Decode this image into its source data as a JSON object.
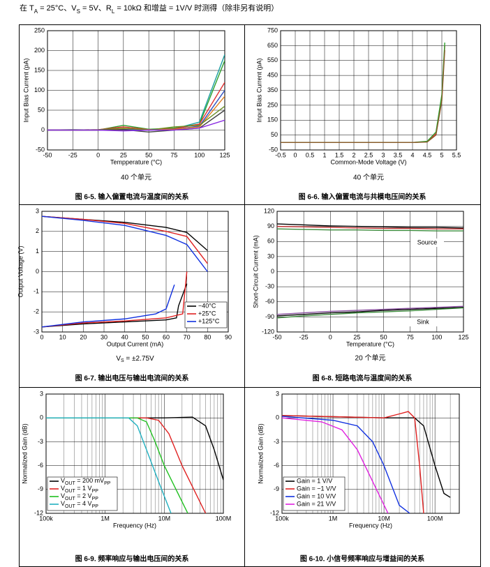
{
  "header": [
    "在 T",
    "A",
    " = 25°C、V",
    "S",
    " = 5V、R",
    "L",
    " = 10kΩ 和增益 = 1V/V 时测得（除非另有说明）"
  ],
  "chart_data": [
    {
      "type": "line",
      "caption": "图 6-5. 输入偏置电流与温度间的关系",
      "subtitle": "40 个单元",
      "xlabel": "Tempperature (°C)",
      "ylabel": "Input Bias Current (pA)",
      "x": [
        -50,
        -25,
        0,
        25,
        50,
        75,
        100,
        125
      ],
      "xlim": [
        -50,
        125
      ],
      "ylim": [
        -50,
        250
      ],
      "xticks": [
        -50,
        -25,
        0,
        25,
        50,
        75,
        100,
        125
      ],
      "yticks": [
        -50,
        0,
        50,
        100,
        150,
        200,
        250
      ],
      "grid": true,
      "series": [
        {
          "color": "#1a9ea0",
          "values": [
            0,
            0,
            0,
            3,
            2,
            3,
            20,
            190
          ]
        },
        {
          "color": "#2ca02c",
          "values": [
            0,
            1,
            0,
            12,
            2,
            5,
            15,
            175
          ]
        },
        {
          "color": "#e03030",
          "values": [
            0,
            0,
            1,
            8,
            1,
            3,
            15,
            120
          ]
        },
        {
          "color": "#3050c0",
          "values": [
            0,
            0,
            0,
            2,
            0,
            2,
            10,
            100
          ]
        },
        {
          "color": "#e08020",
          "values": [
            0,
            0,
            0,
            4,
            1,
            2,
            8,
            85
          ]
        },
        {
          "color": "#6b8e23",
          "values": [
            0,
            0,
            1,
            5,
            0,
            8,
            12,
            60
          ]
        },
        {
          "color": "#404040",
          "values": [
            0,
            0,
            0,
            1,
            -5,
            0,
            5,
            50
          ]
        },
        {
          "color": "#8a2be2",
          "values": [
            0,
            0,
            0,
            -2,
            0,
            0,
            5,
            25
          ]
        }
      ]
    },
    {
      "type": "line",
      "caption": "图 6-6. 输入偏置电流与共模电压间的关系",
      "subtitle": "40 个单元",
      "xlabel": "Common-Mode Voltage (V)",
      "ylabel": "Input Bias Current (pA)",
      "x": [
        -0.5,
        0,
        1,
        2,
        3,
        4,
        4.5,
        4.8,
        5,
        5.1
      ],
      "xlim": [
        -0.5,
        5.5
      ],
      "ylim": [
        -50,
        750
      ],
      "xticks": [
        -0.5,
        0,
        0.5,
        1,
        1.5,
        2,
        2.5,
        3,
        3.5,
        4,
        4.5,
        5,
        5.5
      ],
      "yticks": [
        -50,
        50,
        150,
        250,
        350,
        450,
        550,
        650,
        750
      ],
      "grid": true,
      "series": [
        {
          "color": "#e03030",
          "values": [
            0,
            0,
            0,
            0,
            0,
            0,
            5,
            60,
            300,
            650
          ]
        },
        {
          "color": "#2ca02c",
          "values": [
            0,
            0,
            0,
            0,
            0,
            0,
            8,
            70,
            320,
            670
          ]
        },
        {
          "color": "#8b5a2b",
          "values": [
            0,
            0,
            0,
            0,
            0,
            0,
            3,
            50,
            280,
            620
          ]
        }
      ]
    },
    {
      "type": "line",
      "caption": "图 6-7. 输出电压与输出电流间的关系",
      "subtitle": [
        "V",
        "S",
        " = ±2.75V"
      ],
      "xlabel": "Output Current (mA)",
      "ylabel": "Output Voltage (V)",
      "xlim": [
        0,
        90
      ],
      "ylim": [
        -3,
        3
      ],
      "xticks": [
        0,
        10,
        20,
        30,
        40,
        50,
        60,
        70,
        80,
        90
      ],
      "yticks": [
        -3,
        -2,
        -1,
        0,
        1,
        2,
        3
      ],
      "grid": true,
      "legend": "lower right",
      "series": [
        {
          "name": "−40°C",
          "color": "#000000",
          "x": [
            0,
            20,
            40,
            60,
            70,
            80
          ],
          "values": [
            2.75,
            2.6,
            2.45,
            2.2,
            1.95,
            1.05
          ]
        },
        {
          "name": "+25°C",
          "color": "#e02020",
          "x": [
            0,
            20,
            40,
            60,
            70,
            80
          ],
          "values": [
            2.75,
            2.6,
            2.4,
            2.0,
            1.75,
            0.4
          ]
        },
        {
          "name": "+125°C",
          "color": "#1030e0",
          "x": [
            0,
            20,
            40,
            60,
            70,
            80
          ],
          "values": [
            2.75,
            2.55,
            2.3,
            1.8,
            1.35,
            0.0
          ]
        },
        {
          "color": "#000000",
          "x": [
            0,
            20,
            40,
            60,
            65,
            66,
            70
          ],
          "values": [
            -2.75,
            -2.6,
            -2.5,
            -2.4,
            -2.3,
            -1.7,
            -0.6
          ]
        },
        {
          "color": "#e02020",
          "x": [
            0,
            20,
            40,
            60,
            68,
            70
          ],
          "values": [
            -2.75,
            -2.55,
            -2.45,
            -2.3,
            -2.1,
            0
          ]
        },
        {
          "color": "#1030e0",
          "x": [
            0,
            20,
            40,
            55,
            60,
            64
          ],
          "values": [
            -2.75,
            -2.5,
            -2.35,
            -2.1,
            -1.85,
            -0.65
          ]
        }
      ]
    },
    {
      "type": "line",
      "caption": "图 6-8. 短路电流与温度间的关系",
      "subtitle": "20 个单元",
      "xlabel": "Temperature (°C)",
      "ylabel": "Short-Circuit Current (mA)",
      "annotations": [
        "Source",
        "Sink"
      ],
      "x": [
        -50,
        -25,
        0,
        25,
        50,
        75,
        100,
        125
      ],
      "xlim": [
        -50,
        125
      ],
      "ylim": [
        -120,
        120
      ],
      "xticks": [
        -50,
        -25,
        0,
        25,
        50,
        75,
        100,
        125
      ],
      "yticks": [
        -120,
        -90,
        -60,
        -30,
        0,
        30,
        60,
        90,
        120
      ],
      "grid": true,
      "series": [
        {
          "color": "#000000",
          "values": [
            95,
            93,
            91,
            90,
            89,
            88,
            88,
            87
          ]
        },
        {
          "color": "#c03030",
          "values": [
            90,
            89,
            88,
            87,
            86,
            86,
            85,
            85
          ]
        },
        {
          "color": "#3a8a3a",
          "values": [
            85,
            84,
            83,
            83,
            82,
            82,
            81,
            81
          ]
        },
        {
          "color": "#000000",
          "values": [
            -88,
            -85,
            -82,
            -80,
            -77,
            -75,
            -73,
            -71
          ]
        },
        {
          "color": "#3a8a3a",
          "values": [
            -92,
            -88,
            -85,
            -82,
            -80,
            -78,
            -75,
            -72
          ]
        },
        {
          "color": "#8a50a0",
          "values": [
            -85,
            -82,
            -79,
            -77,
            -75,
            -73,
            -71,
            -69
          ]
        }
      ]
    },
    {
      "type": "line",
      "caption": "图 6-9. 频率响应与输出电压间的关系",
      "xlabel": "Frequency (Hz)",
      "ylabel": "Normalized Gain (dB)",
      "xlog": true,
      "minor_grid": true,
      "xlim": [
        100000,
        100000000
      ],
      "ylim": [
        -12,
        3
      ],
      "xticks": [
        {
          "value": 100000,
          "label": "100k"
        },
        {
          "value": 1000000,
          "label": "1M"
        },
        {
          "value": 10000000,
          "label": "10M"
        },
        {
          "value": 100000000,
          "label": "100M"
        }
      ],
      "yticks": [
        -12,
        -9,
        -6,
        -3,
        0,
        3
      ],
      "grid": true,
      "legend": "lower left",
      "series": [
        {
          "name": [
            "V",
            "OUT",
            " = 200 mV",
            "PP"
          ],
          "color": "#000000",
          "x": [
            100000,
            10000000,
            30000000,
            50000000,
            70000000,
            100000000
          ],
          "values": [
            0,
            0,
            0.1,
            -1,
            -4,
            -7.8
          ]
        },
        {
          "name": [
            "V",
            "OUT",
            " = 1 V",
            "PP"
          ],
          "color": "#e02020",
          "x": [
            100000,
            5000000,
            8000000,
            12000000,
            20000000,
            50000000
          ],
          "values": [
            0,
            0,
            -0.3,
            -2,
            -6,
            -12
          ]
        },
        {
          "name": [
            "V",
            "OUT",
            " = 2 V",
            "PP"
          ],
          "color": "#20c020",
          "x": [
            100000,
            3500000,
            5000000,
            7000000,
            10000000,
            25000000
          ],
          "values": [
            0,
            0,
            -0.5,
            -3,
            -6,
            -12
          ]
        },
        {
          "name": [
            "V",
            "OUT",
            " = 4 V",
            "PP"
          ],
          "color": "#20b0c0",
          "x": [
            100000,
            2500000,
            3500000,
            5000000,
            8000000,
            13000000
          ],
          "values": [
            0,
            0,
            -1,
            -4,
            -8,
            -12
          ]
        }
      ]
    },
    {
      "type": "line",
      "caption": "图 6-10. 小信号频率响应与增益间的关系",
      "xlabel": "Frequency (Hz)",
      "ylabel": "Normalized Gain (dB)",
      "xlog": true,
      "minor_grid": true,
      "xlim": [
        100000,
        300000000
      ],
      "ylim": [
        -12,
        3
      ],
      "xticks": [
        {
          "value": 100000,
          "label": "100k"
        },
        {
          "value": 1000000,
          "label": "1M"
        },
        {
          "value": 10000000,
          "label": "10M"
        },
        {
          "value": 100000000,
          "label": "100M"
        }
      ],
      "yticks": [
        -12,
        -9,
        -6,
        -3,
        0,
        3
      ],
      "grid": true,
      "legend": "lower left",
      "series": [
        {
          "name": "Gain =  1 V/V",
          "color": "#000000",
          "x": [
            100000,
            10000000,
            40000000,
            60000000,
            100000000,
            150000000,
            200000000
          ],
          "values": [
            0.3,
            0,
            0,
            -1,
            -6,
            -9.5,
            -10
          ]
        },
        {
          "name": "Gain = −1 V/V",
          "color": "#e02020",
          "x": [
            100000,
            10000000,
            20000000,
            30000000,
            40000000,
            50000000,
            60000000
          ],
          "values": [
            0.3,
            0,
            0.5,
            0.8,
            0,
            -6,
            -12
          ]
        },
        {
          "name": "Gain = 10 V/V",
          "color": "#1030e0",
          "x": [
            100000,
            1000000,
            3000000,
            6000000,
            10000000,
            20000000,
            32000000
          ],
          "values": [
            0.2,
            -0.3,
            -1,
            -3,
            -6,
            -11,
            -12
          ]
        },
        {
          "name": "Gain = 21 V/V",
          "color": "#e020e0",
          "x": [
            100000,
            600000,
            1500000,
            3000000,
            6000000,
            12000000
          ],
          "values": [
            0,
            -0.5,
            -1.5,
            -4,
            -8,
            -12
          ]
        }
      ]
    }
  ]
}
